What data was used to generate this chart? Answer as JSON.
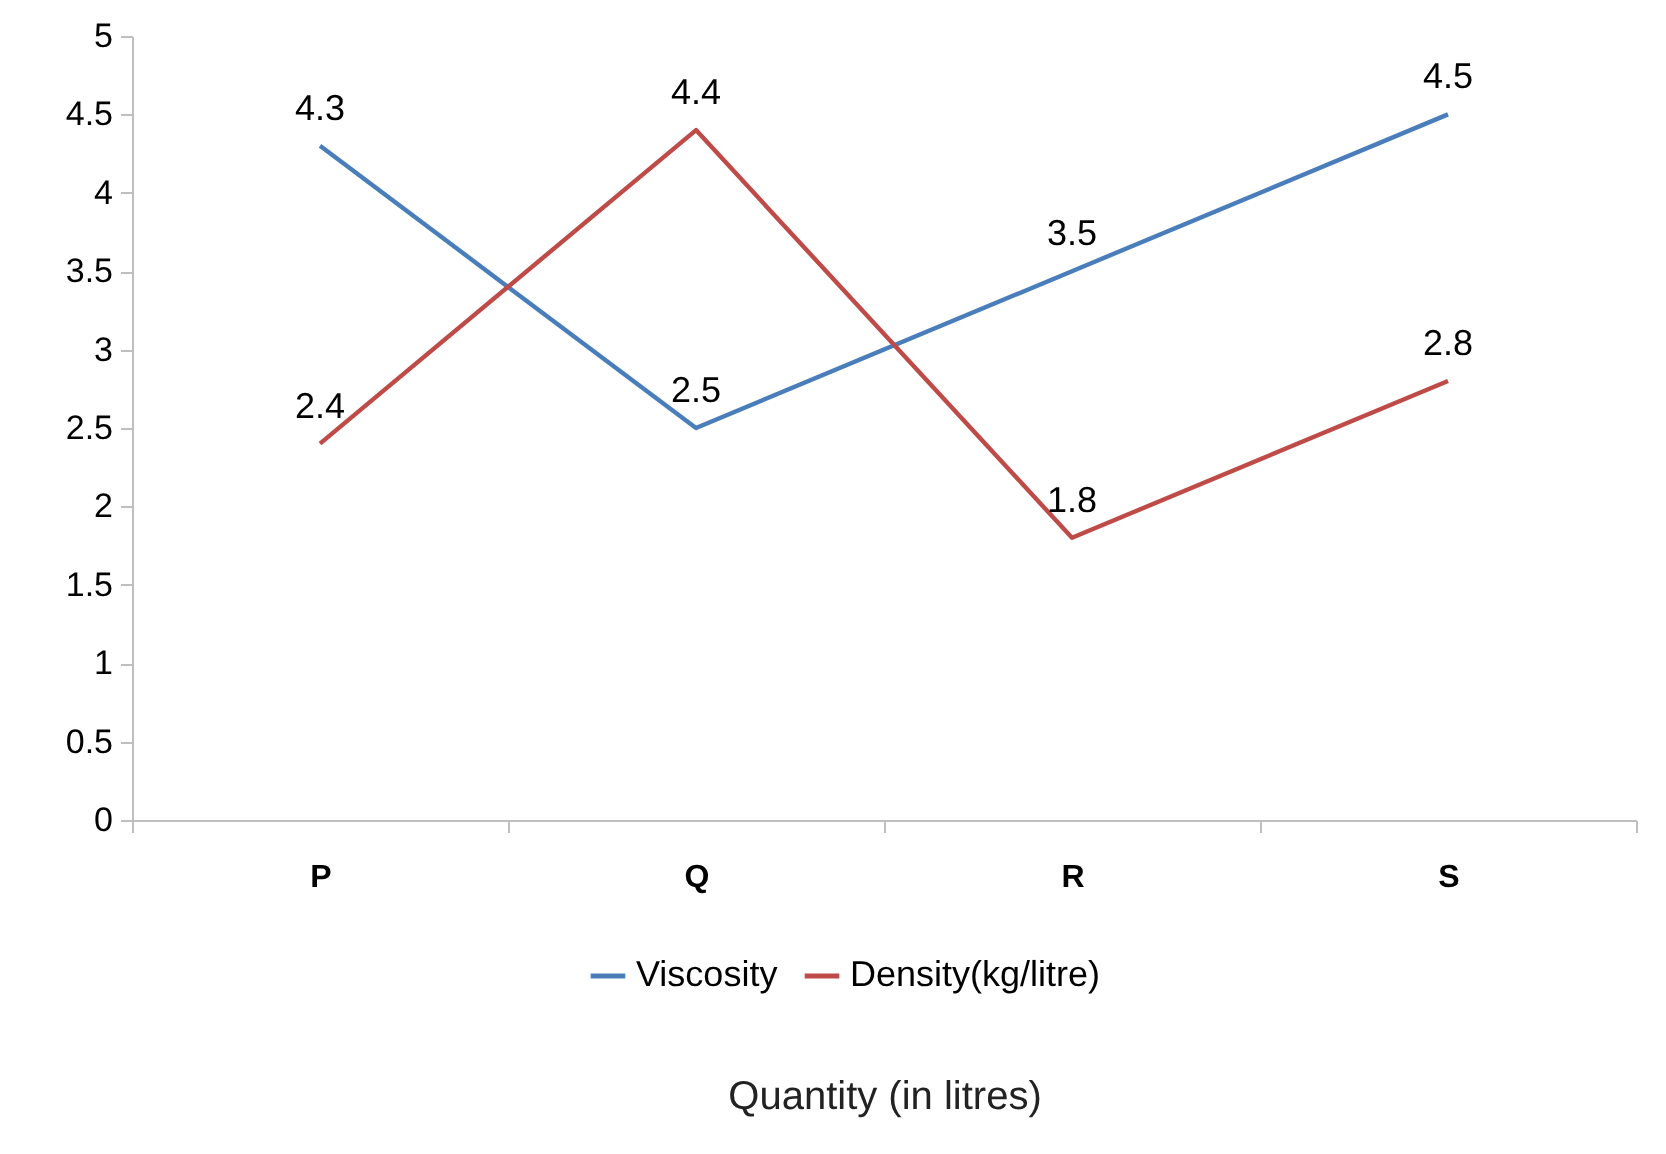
{
  "chart_data": {
    "type": "line",
    "xlabel": "Quantity (in litres)",
    "categories": [
      "P",
      "Q",
      "R",
      "S"
    ],
    "series": [
      {
        "name": "Viscosity",
        "color": "#4a7ebb",
        "values": [
          4.3,
          2.5,
          3.5,
          4.5
        ]
      },
      {
        "name": "Density(kg/litre)",
        "color": "#be4b48",
        "values": [
          2.4,
          4.4,
          1.8,
          2.8
        ]
      }
    ],
    "ylim": [
      0,
      5
    ],
    "yticks": [
      0,
      0.5,
      1,
      1.5,
      2,
      2.5,
      3,
      3.5,
      4,
      4.5,
      5
    ],
    "grid": false,
    "legend": "bottom",
    "data_labels": true,
    "marker": "none"
  }
}
